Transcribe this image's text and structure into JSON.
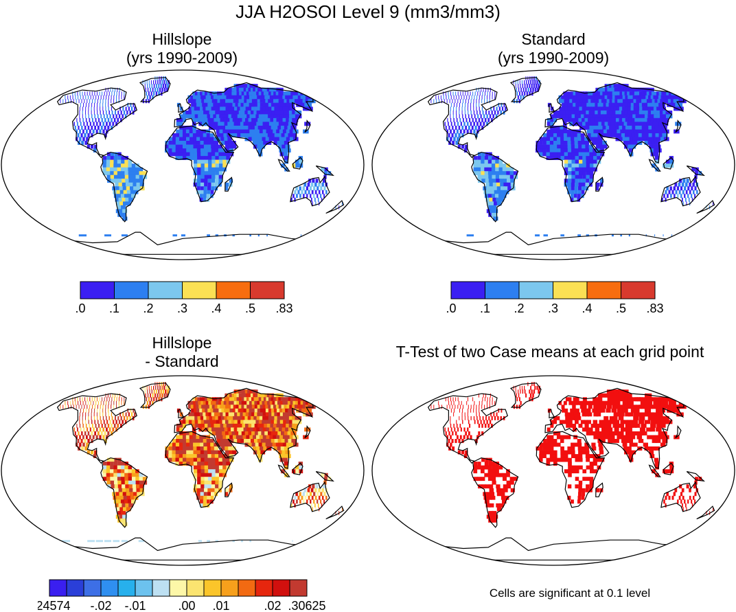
{
  "figure": {
    "title": "JJA H2OSOI Level 9 (mm3/mm3)"
  },
  "panels": [
    {
      "id": "hillslope",
      "title_line1": "Hillslope",
      "title_line2": "(yrs 1990-2009)"
    },
    {
      "id": "standard",
      "title_line1": "Standard",
      "title_line2": "(yrs 1990-2009)"
    },
    {
      "id": "difference",
      "title_line1": "Hillslope",
      "title_line2": "- Standard"
    },
    {
      "id": "ttest",
      "title_line1": "T-Test of two Case means at each grid point",
      "title_line2": ""
    }
  ],
  "colorbars": {
    "absolute": {
      "colors": [
        "#3b1ff2",
        "#2d7ff0",
        "#7cc7ee",
        "#fbe054",
        "#f76d0f",
        "#d83a2e"
      ],
      "labels": [
        ".0",
        ".1",
        ".2",
        ".3",
        ".4",
        ".5",
        ".83"
      ]
    },
    "difference": {
      "colors": [
        "#3a1ff0",
        "#2a3fd8",
        "#3d6fe6",
        "#2f8ff0",
        "#27b0ec",
        "#6cc2ee",
        "#bde0f2",
        "#fdf7a8",
        "#fbe470",
        "#fbc52a",
        "#f7a01c",
        "#f26a12",
        "#e6260e",
        "#d1100e",
        "#c23a30"
      ],
      "labels": [
        "-.24574",
        "-.02",
        "-.01",
        ".00",
        ".01",
        ".02",
        ".30625"
      ]
    }
  },
  "ttest_note": "Cells are significant at 0.1 level"
}
